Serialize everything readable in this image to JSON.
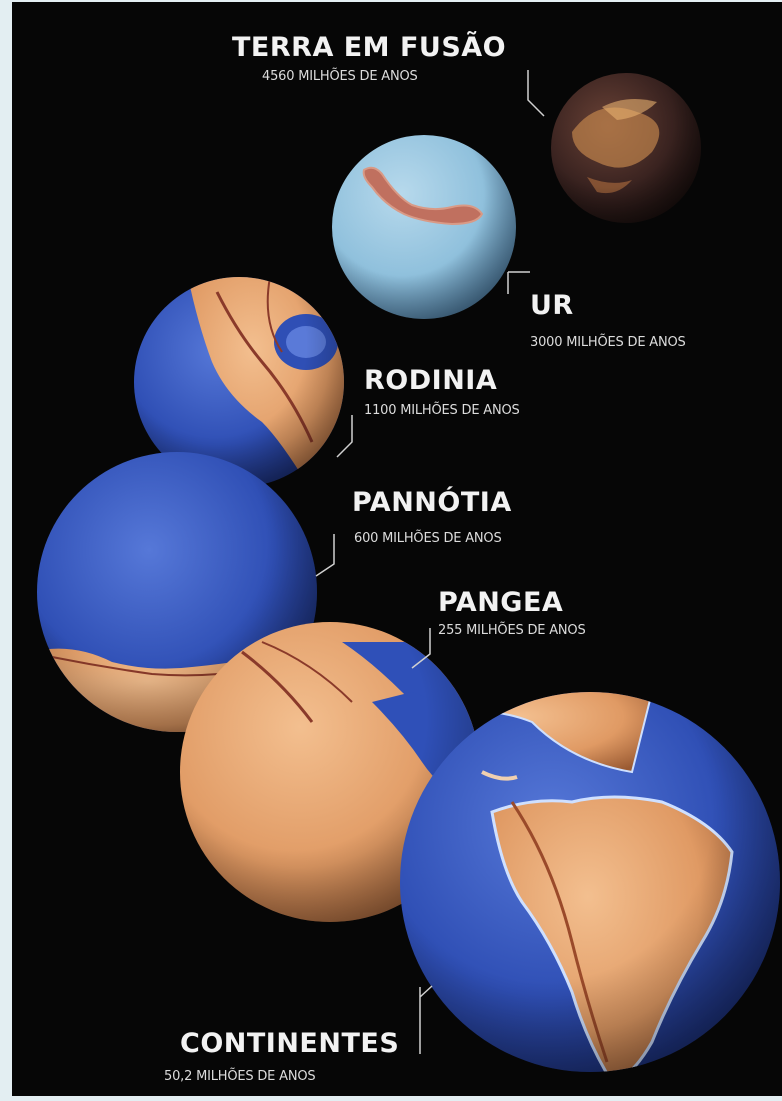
{
  "eras": [
    {
      "name": "TERRA EM FUSÃO",
      "age": "4560 MILHÕES DE ANOS",
      "globe_style": "molten",
      "colors": {
        "base": "#3a2320",
        "accent": "#d98a4a"
      }
    },
    {
      "name": "UR",
      "age": "3000 MILHÕES DE ANOS",
      "globe_style": "pale-ocean",
      "colors": {
        "ocean": "#8fc0dc",
        "land": "#c0705f"
      }
    },
    {
      "name": "RODINIA",
      "age": "1100 MILHÕES DE ANOS",
      "globe_style": "land-ocean",
      "colors": {
        "ocean": "#2f4fb5",
        "land": "#e0a070"
      }
    },
    {
      "name": "PANNÓTIA",
      "age": "600 MILHÕES DE ANOS",
      "globe_style": "ocean",
      "colors": {
        "ocean": "#2a44a6",
        "land": "#de9a66"
      }
    },
    {
      "name": "PANGEA",
      "age": "255 MILHÕES DE ANOS",
      "globe_style": "land",
      "colors": {
        "ocean": "#2f50b8",
        "land": "#e29a62"
      }
    },
    {
      "name": "CONTINENTES",
      "age": "50,2 MILHÕES DE ANOS",
      "globe_style": "modern-earth",
      "colors": {
        "ocean": "#2a4ab0",
        "land": "#df9460"
      }
    }
  ],
  "colors": {
    "background": "#060606",
    "text": "#f2f2f2",
    "frame": "#e3eef2"
  }
}
